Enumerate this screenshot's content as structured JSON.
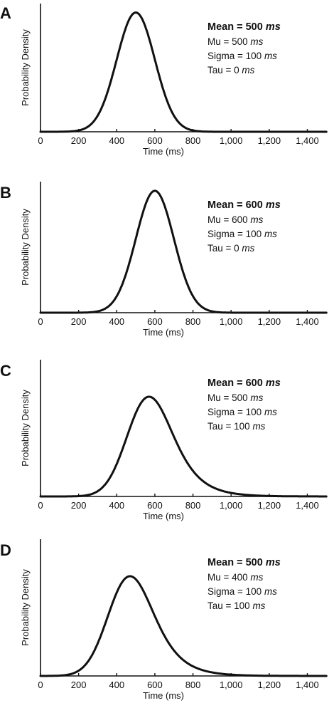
{
  "chart_data": [
    {
      "type": "line",
      "panel": "A",
      "xlabel": "Time (ms)",
      "ylabel": "Probability Density",
      "xlim": [
        0,
        1500
      ],
      "xticks": [
        0,
        200,
        400,
        600,
        800,
        1000,
        1200,
        1400
      ],
      "xtick_labels": [
        "0",
        "200",
        "400",
        "600",
        "800",
        "1,000",
        "1,200",
        "1,400"
      ],
      "distribution": "ex-gaussian",
      "params": {
        "mu": 500,
        "sigma": 100,
        "tau": 0
      },
      "annotations": [
        {
          "label": "Mean = 500",
          "unit": "ms",
          "emphasis": true
        },
        {
          "label": "Mu = 500",
          "unit": "ms"
        },
        {
          "label": "Sigma = 100",
          "unit": "ms"
        },
        {
          "label": "Tau = 0",
          "unit": "ms"
        }
      ]
    },
    {
      "type": "line",
      "panel": "B",
      "xlabel": "Time (ms)",
      "ylabel": "Probability Density",
      "xlim": [
        0,
        1500
      ],
      "xticks": [
        0,
        200,
        400,
        600,
        800,
        1000,
        1200,
        1400
      ],
      "xtick_labels": [
        "0",
        "200",
        "400",
        "600",
        "800",
        "1,000",
        "1,200",
        "1,400"
      ],
      "distribution": "ex-gaussian",
      "params": {
        "mu": 600,
        "sigma": 100,
        "tau": 0
      },
      "annotations": [
        {
          "label": "Mean = 600",
          "unit": "ms",
          "emphasis": true
        },
        {
          "label": "Mu = 600",
          "unit": "ms"
        },
        {
          "label": "Sigma = 100",
          "unit": "ms"
        },
        {
          "label": "Tau = 0",
          "unit": "ms"
        }
      ]
    },
    {
      "type": "line",
      "panel": "C",
      "xlabel": "Time (ms)",
      "ylabel": "Probability Density",
      "xlim": [
        0,
        1500
      ],
      "xticks": [
        0,
        200,
        400,
        600,
        800,
        1000,
        1200,
        1400
      ],
      "xtick_labels": [
        "0",
        "200",
        "400",
        "600",
        "800",
        "1,000",
        "1,200",
        "1,400"
      ],
      "distribution": "ex-gaussian",
      "params": {
        "mu": 500,
        "sigma": 100,
        "tau": 100
      },
      "annotations": [
        {
          "label": "Mean = 600",
          "unit": "ms",
          "emphasis": true
        },
        {
          "label": "Mu = 500",
          "unit": "ms"
        },
        {
          "label": "Sigma = 100",
          "unit": "ms"
        },
        {
          "label": "Tau = 100",
          "unit": "ms"
        }
      ]
    },
    {
      "type": "line",
      "panel": "D",
      "xlabel": "Time (ms)",
      "ylabel": "Probability Density",
      "xlim": [
        0,
        1500
      ],
      "xticks": [
        0,
        200,
        400,
        600,
        800,
        1000,
        1200,
        1400
      ],
      "xtick_labels": [
        "0",
        "200",
        "400",
        "600",
        "800",
        "1,000",
        "1,200",
        "1,400"
      ],
      "distribution": "ex-gaussian",
      "params": {
        "mu": 400,
        "sigma": 100,
        "tau": 100
      },
      "annotations": [
        {
          "label": "Mean = 500",
          "unit": "ms",
          "emphasis": true
        },
        {
          "label": "Mu = 400",
          "unit": "ms"
        },
        {
          "label": "Sigma = 100",
          "unit": "ms"
        },
        {
          "label": "Tau = 100",
          "unit": "ms"
        }
      ]
    }
  ]
}
